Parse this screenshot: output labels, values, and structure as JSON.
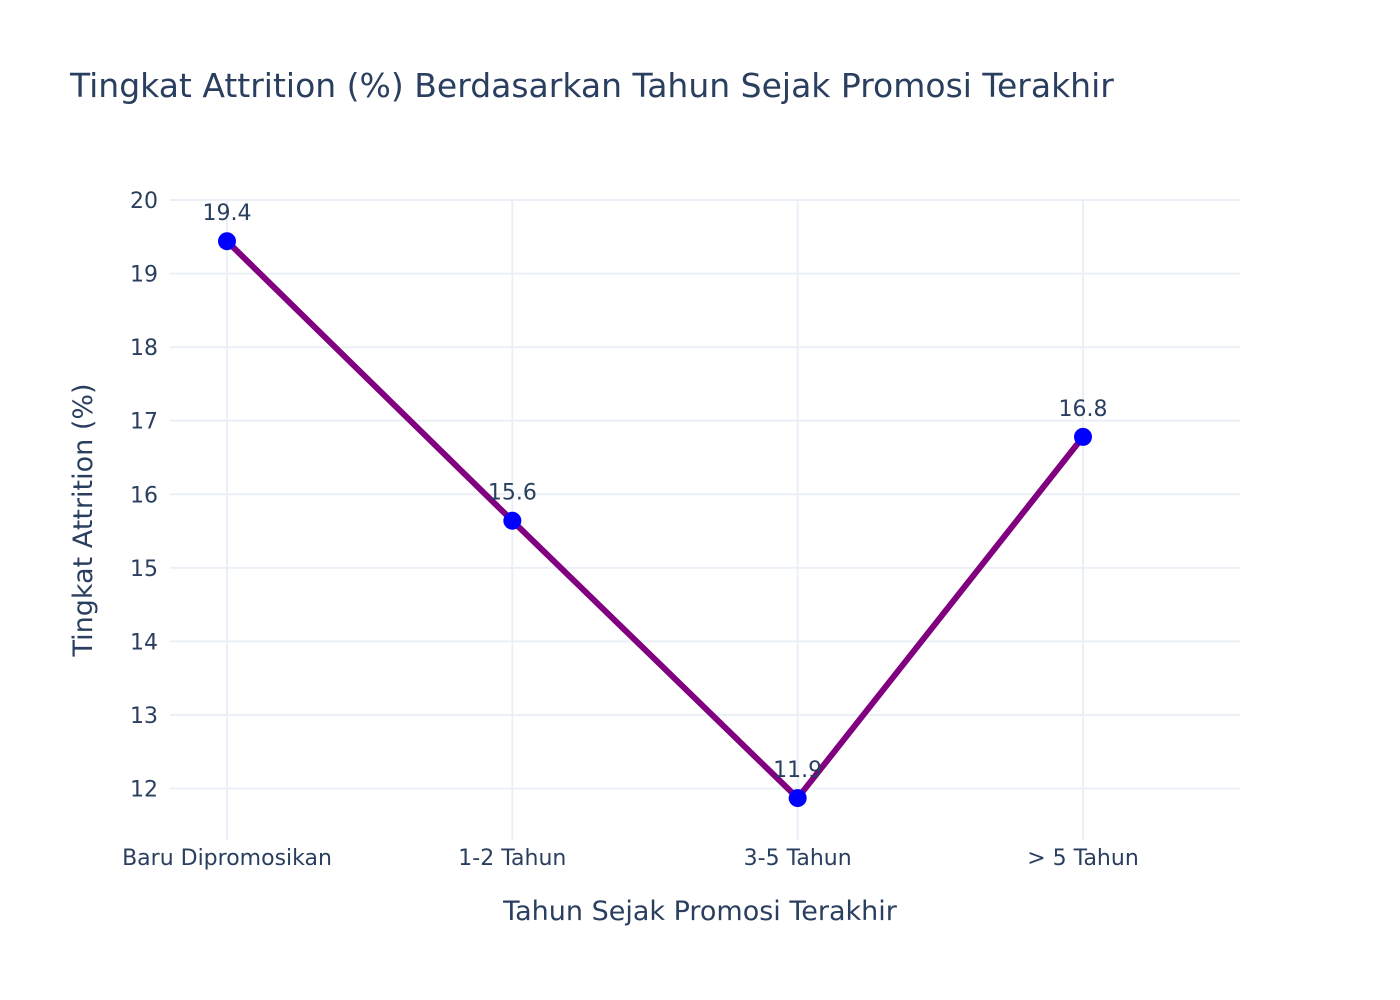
{
  "chart_data": {
    "type": "line",
    "title": "Tingkat Attrition (%) Berdasarkan Tahun Sejak Promosi Terakhir",
    "xlabel": "Tahun Sejak Promosi Terakhir",
    "ylabel": "Tingkat Attrition (%)",
    "categories": [
      "Baru Dipromosikan",
      "1-2 Tahun",
      "3-5 Tahun",
      "> 5 Tahun"
    ],
    "values": [
      19.44,
      15.64,
      11.87,
      16.78
    ],
    "data_labels": [
      "19.4",
      "15.6",
      "11.9",
      "16.8"
    ],
    "ylim": [
      11.3,
      20.0
    ],
    "yticks": [
      12,
      13,
      14,
      15,
      16,
      17,
      18,
      19,
      20
    ],
    "grid": true,
    "legend": "none",
    "colors": {
      "line": "#800080",
      "marker": "#0000ff",
      "grid": "#ebf0f8",
      "text": "#2a3f5f"
    }
  }
}
